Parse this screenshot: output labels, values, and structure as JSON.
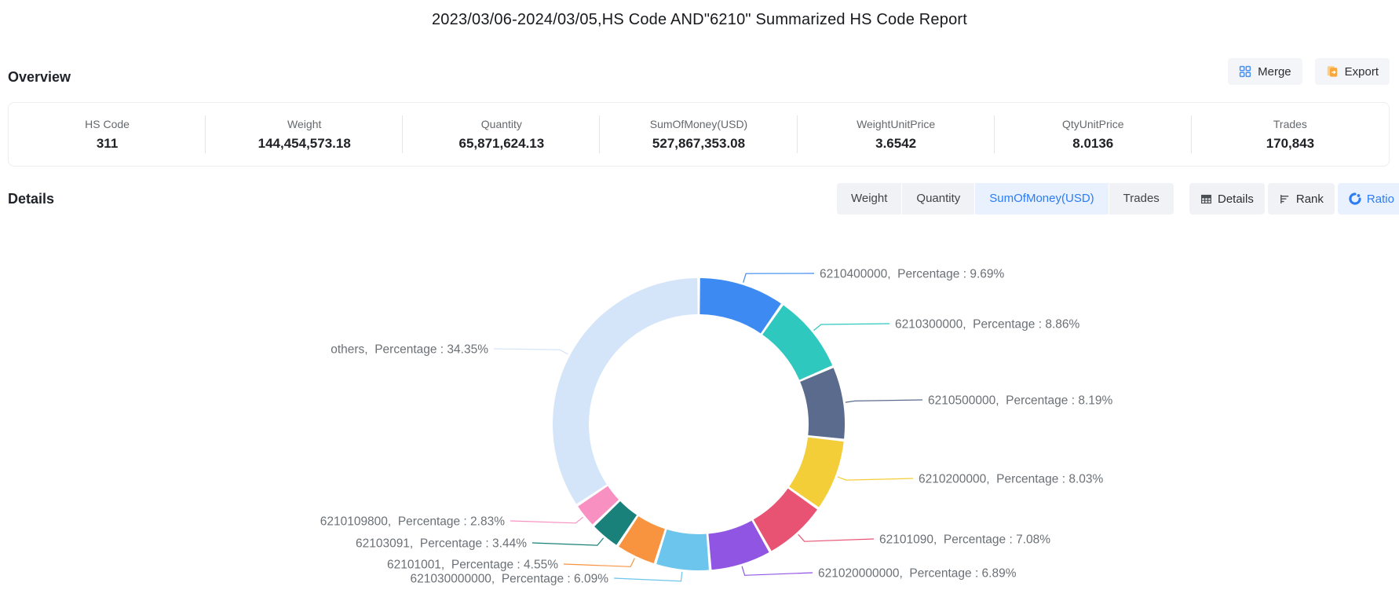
{
  "title": "2023/03/06-2024/03/05,HS Code AND\"6210\" Summarized HS Code Report",
  "overview": {
    "heading": "Overview",
    "merge_label": "Merge",
    "export_label": "Export",
    "stats": [
      {
        "label": "HS Code",
        "value": "311"
      },
      {
        "label": "Weight",
        "value": "144,454,573.18"
      },
      {
        "label": "Quantity",
        "value": "65,871,624.13"
      },
      {
        "label": "SumOfMoney(USD)",
        "value": "527,867,353.08"
      },
      {
        "label": "WeightUnitPrice",
        "value": "3.6542"
      },
      {
        "label": "QtyUnitPrice",
        "value": "8.0136"
      },
      {
        "label": "Trades",
        "value": "170,843"
      }
    ]
  },
  "details": {
    "heading": "Details",
    "metric_tabs": [
      {
        "label": "Weight",
        "active": false
      },
      {
        "label": "Quantity",
        "active": false
      },
      {
        "label": "SumOfMoney(USD)",
        "active": true
      },
      {
        "label": "Trades",
        "active": false
      }
    ],
    "view_tabs": [
      {
        "label": "Details",
        "icon": "table-icon",
        "active": false
      },
      {
        "label": "Rank",
        "icon": "rank-icon",
        "active": false
      },
      {
        "label": "Ratio",
        "icon": "ratio-icon",
        "active": true
      }
    ]
  },
  "chart_data": {
    "type": "pie",
    "donut": true,
    "unit": "percent",
    "legend_position": "none",
    "label_keyword": "Percentage",
    "slices": [
      {
        "name": "6210400000",
        "pct": 9.69,
        "color": "#3D8BF2",
        "label": "6210400000,  Percentage : 9.69%"
      },
      {
        "name": "6210300000",
        "pct": 8.86,
        "color": "#2EC8BE",
        "label": "6210300000,  Percentage : 8.86%"
      },
      {
        "name": "6210500000",
        "pct": 8.19,
        "color": "#5A6B8D",
        "label": "6210500000,  Percentage : 8.19%"
      },
      {
        "name": "6210200000",
        "pct": 8.03,
        "color": "#F4CE38",
        "label": "6210200000,  Percentage : 8.03%"
      },
      {
        "name": "62101090",
        "pct": 7.08,
        "color": "#E85374",
        "label": "62101090,  Percentage : 7.08%"
      },
      {
        "name": "621020000000",
        "pct": 6.89,
        "color": "#9055E2",
        "label": "621020000000,  Percentage : 6.89%"
      },
      {
        "name": "621030000000",
        "pct": 6.09,
        "color": "#6CC5EC",
        "label": "621030000000,  Percentage : 6.09%"
      },
      {
        "name": "62101001",
        "pct": 4.55,
        "color": "#F89440",
        "label": "62101001,  Percentage : 4.55%"
      },
      {
        "name": "62103091",
        "pct": 3.44,
        "color": "#19807A",
        "label": "62103091,  Percentage : 3.44%"
      },
      {
        "name": "6210109800",
        "pct": 2.83,
        "color": "#F990C2",
        "label": "6210109800,  Percentage : 2.83%"
      },
      {
        "name": "others",
        "pct": 34.35,
        "color": "#D5E5F9",
        "label": "others,  Percentage : 34.35%"
      }
    ]
  },
  "colors": {
    "accent_blue": "#2B7CF6",
    "tab_bg": "#F1F2F6",
    "tab_active_bg": "#E8F1FD",
    "icon_orange": "#F7A83C"
  }
}
